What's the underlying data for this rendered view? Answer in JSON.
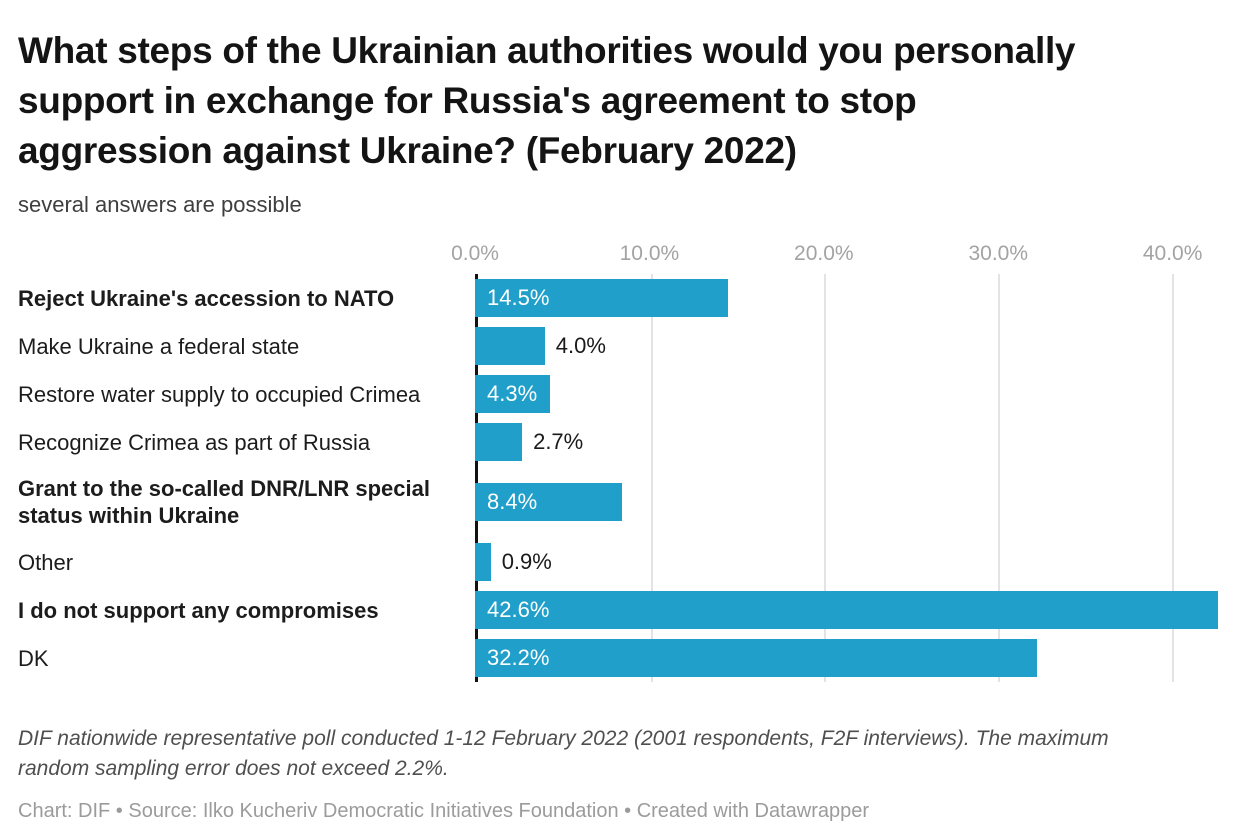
{
  "header": {
    "title": "What steps of the Ukrainian authorities would you personally support in exchange for Russia's agreement to stop aggression against Ukraine? (February 2022)",
    "subtitle": "several answers are possible"
  },
  "chart_data": {
    "type": "bar",
    "orientation": "horizontal",
    "title": "What steps of the Ukrainian authorities would you personally support in exchange for Russia's agreement to stop aggression against Ukraine? (February 2022)",
    "subtitle": "several answers are possible",
    "unit": "%",
    "axis": {
      "min": 0,
      "max": 42.6,
      "grid": true,
      "ticks": [
        {
          "value": 0,
          "label": "0.0%"
        },
        {
          "value": 10,
          "label": "10.0%"
        },
        {
          "value": 20,
          "label": "20.0%"
        },
        {
          "value": 30,
          "label": "30.0%"
        },
        {
          "value": 40,
          "label": "40.0%"
        }
      ]
    },
    "bars": [
      {
        "label": "Reject Ukraine's accession to NATO",
        "value": 14.5,
        "value_label": "14.5%",
        "bold": true,
        "value_position": "inside"
      },
      {
        "label": "Make Ukraine a federal state",
        "value": 4.0,
        "value_label": "4.0%",
        "bold": false,
        "value_position": "outside"
      },
      {
        "label": "Restore water supply to occupied Crimea",
        "value": 4.3,
        "value_label": "4.3%",
        "bold": false,
        "value_position": "inside"
      },
      {
        "label": "Recognize Crimea as part of Russia",
        "value": 2.7,
        "value_label": "2.7%",
        "bold": false,
        "value_position": "outside"
      },
      {
        "label": "Grant to the so-called DNR/LNR special status within Ukraine",
        "value": 8.4,
        "value_label": "8.4%",
        "bold": true,
        "value_position": "inside"
      },
      {
        "label": "Other",
        "value": 0.9,
        "value_label": "0.9%",
        "bold": false,
        "value_position": "outside"
      },
      {
        "label": "I do not support any compromises",
        "value": 42.6,
        "value_label": "42.6%",
        "bold": true,
        "value_position": "inside"
      },
      {
        "label": "DK",
        "value": 32.2,
        "value_label": "32.2%",
        "bold": false,
        "value_position": "inside"
      }
    ],
    "colors": {
      "bar": "#1f9fca",
      "value_label_inside": "#ffffff",
      "value_label_outside": "#1a1a1a",
      "gridline": "#e3e3e3",
      "axis_line": "#121212",
      "tick_label": "#a3a3a3"
    }
  },
  "footer": {
    "note": "DIF nationwide representative poll conducted 1-12 February 2022 (2001 respondents, F2F interviews). The maximum random sampling error does not exceed 2.2%.",
    "attribution": "Chart: DIF • Source: Ilko Kucheriv Democratic Initiatives Foundation • Created with Datawrapper"
  }
}
